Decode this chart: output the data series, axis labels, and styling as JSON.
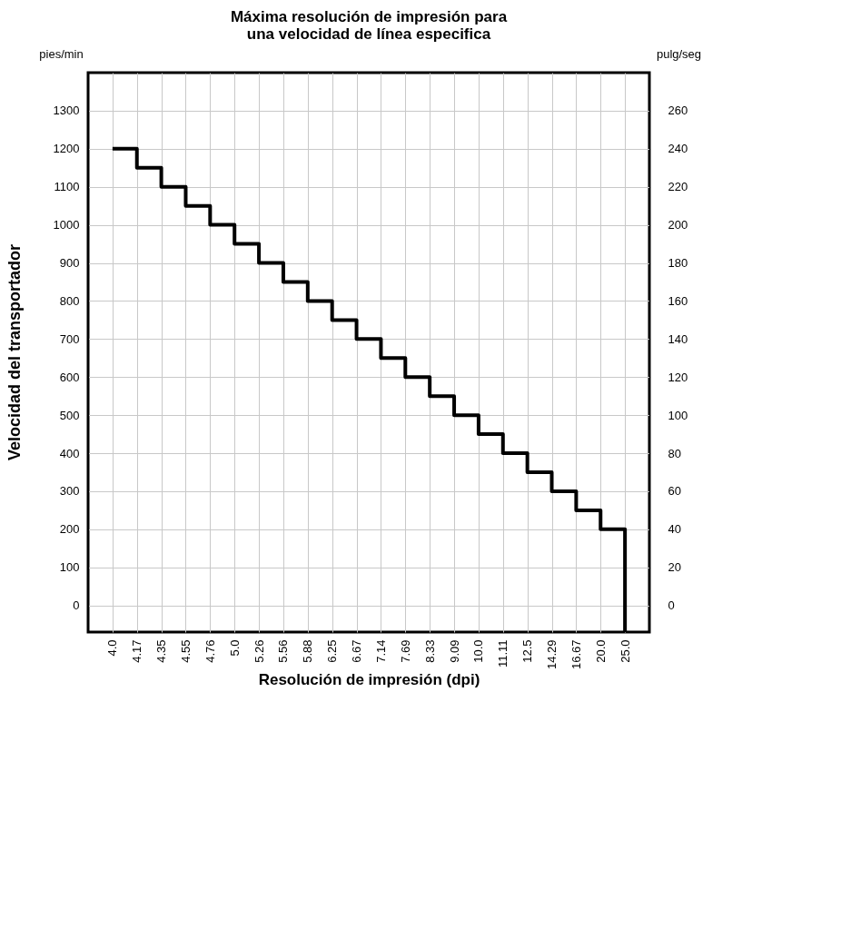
{
  "chart_data": {
    "type": "step",
    "title": "Máxima resolución de impresión para una velocidad de línea especifica",
    "xlabel": "Resolución de impresión (dpi)",
    "ylabel": "Velocidad del transportador",
    "y2label": "pulg/seg",
    "annotations": [
      "pies/min"
    ],
    "categories": [
      "4.0",
      "4.17",
      "4.35",
      "4.55",
      "4.76",
      "5.0",
      "5.26",
      "5.56",
      "5.88",
      "6.25",
      "6.67",
      "7.14",
      "7.69",
      "8.33",
      "9.09",
      "10.0",
      "11.11",
      "12.5",
      "14.29",
      "16.67",
      "20.0",
      "25.0"
    ],
    "series": [
      {
        "color": "#000000",
        "values": [
          1200,
          1150,
          1100,
          1050,
          1000,
          950,
          900,
          850,
          800,
          750,
          700,
          650,
          600,
          550,
          500,
          450,
          400,
          350,
          300,
          250,
          200,
          -70
        ]
      }
    ],
    "ylim": [
      -70,
      1400
    ],
    "yticks": [
      0,
      100,
      200,
      300,
      400,
      500,
      600,
      700,
      800,
      900,
      1000,
      1100,
      1200,
      1300
    ],
    "y2lim": [
      -14,
      280
    ],
    "y2ticks": [
      0,
      20,
      40,
      60,
      80,
      100,
      120,
      140,
      160,
      180,
      200,
      220,
      240,
      260
    ],
    "grid": true
  }
}
